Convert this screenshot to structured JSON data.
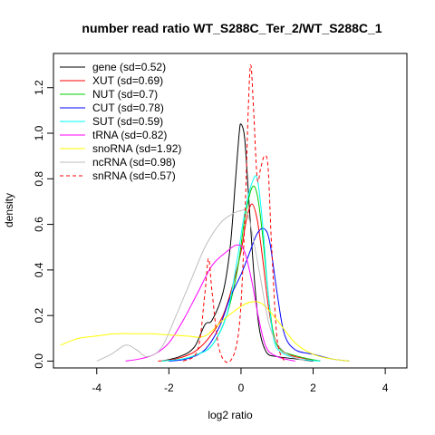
{
  "chart_data": {
    "type": "line",
    "title": "number read ratio WT_S288C_Ter_2/WT_S288C_1",
    "xlabel": "log2 ratio",
    "ylabel": "density",
    "xlim": [
      -5.2,
      4.6
    ],
    "ylim": [
      -0.03,
      1.35
    ],
    "xticks": [
      -4,
      -2,
      0,
      2,
      4
    ],
    "yticks": [
      0.0,
      0.2,
      0.4,
      0.6,
      0.8,
      1.0,
      1.2
    ],
    "grid": false,
    "legend_position": "top-left",
    "series": [
      {
        "name": "gene (sd=0.52)",
        "color": "#000000",
        "dash": false,
        "points": [
          [
            -2.2,
            0
          ],
          [
            -1.7,
            0.02
          ],
          [
            -1.3,
            0.06
          ],
          [
            -1.0,
            0.16
          ],
          [
            -0.8,
            0.18
          ],
          [
            -0.5,
            0.3
          ],
          [
            -0.3,
            0.5
          ],
          [
            -0.15,
            0.8
          ],
          [
            -0.05,
            1.0
          ],
          [
            0.0,
            1.04
          ],
          [
            0.1,
            0.98
          ],
          [
            0.2,
            0.75
          ],
          [
            0.35,
            0.4
          ],
          [
            0.5,
            0.15
          ],
          [
            0.7,
            0.04
          ],
          [
            1.0,
            0.02
          ],
          [
            1.5,
            0.01
          ],
          [
            2.0,
            0
          ]
        ]
      },
      {
        "name": "XUT (sd=0.69)",
        "color": "#ff0000",
        "dash": false,
        "points": [
          [
            -2.3,
            0
          ],
          [
            -1.8,
            0.01
          ],
          [
            -1.3,
            0.04
          ],
          [
            -0.9,
            0.1
          ],
          [
            -0.5,
            0.2
          ],
          [
            -0.2,
            0.35
          ],
          [
            0.0,
            0.48
          ],
          [
            0.15,
            0.62
          ],
          [
            0.3,
            0.69
          ],
          [
            0.45,
            0.62
          ],
          [
            0.6,
            0.45
          ],
          [
            0.75,
            0.25
          ],
          [
            0.9,
            0.12
          ],
          [
            1.1,
            0.05
          ],
          [
            1.5,
            0.02
          ],
          [
            2.2,
            0
          ]
        ]
      },
      {
        "name": "NUT (sd=0.7)",
        "color": "#00cc00",
        "dash": false,
        "points": [
          [
            -2.2,
            0
          ],
          [
            -1.6,
            0.01
          ],
          [
            -1.2,
            0.03
          ],
          [
            -0.8,
            0.07
          ],
          [
            -0.4,
            0.2
          ],
          [
            -0.1,
            0.4
          ],
          [
            0.1,
            0.62
          ],
          [
            0.3,
            0.76
          ],
          [
            0.45,
            0.73
          ],
          [
            0.6,
            0.55
          ],
          [
            0.75,
            0.3
          ],
          [
            0.9,
            0.12
          ],
          [
            1.1,
            0.05
          ],
          [
            1.6,
            0.02
          ],
          [
            2.2,
            0
          ]
        ]
      },
      {
        "name": "CUT (sd=0.78)",
        "color": "#0000ff",
        "dash": false,
        "points": [
          [
            -2.0,
            0
          ],
          [
            -1.5,
            0.01
          ],
          [
            -1.0,
            0.05
          ],
          [
            -0.6,
            0.15
          ],
          [
            -0.3,
            0.28
          ],
          [
            0.0,
            0.38
          ],
          [
            0.2,
            0.46
          ],
          [
            0.45,
            0.56
          ],
          [
            0.65,
            0.58
          ],
          [
            0.8,
            0.52
          ],
          [
            1.0,
            0.3
          ],
          [
            1.2,
            0.12
          ],
          [
            1.5,
            0.05
          ],
          [
            2.0,
            0.03
          ],
          [
            2.5,
            0.01
          ],
          [
            3.0,
            0
          ]
        ]
      },
      {
        "name": "SUT (sd=0.59)",
        "color": "#00ffff",
        "dash": false,
        "points": [
          [
            -2.2,
            0
          ],
          [
            -1.6,
            0.01
          ],
          [
            -1.2,
            0.03
          ],
          [
            -0.8,
            0.07
          ],
          [
            -0.4,
            0.2
          ],
          [
            -0.1,
            0.45
          ],
          [
            0.1,
            0.65
          ],
          [
            0.3,
            0.78
          ],
          [
            0.45,
            0.8
          ],
          [
            0.6,
            0.6
          ],
          [
            0.75,
            0.3
          ],
          [
            0.9,
            0.1
          ],
          [
            1.1,
            0.04
          ],
          [
            1.6,
            0.01
          ],
          [
            2.2,
            0
          ]
        ]
      },
      {
        "name": "tRNA (sd=0.82)",
        "color": "#ff00ff",
        "dash": false,
        "points": [
          [
            -3.2,
            0
          ],
          [
            -2.8,
            0.01
          ],
          [
            -2.4,
            0.03
          ],
          [
            -2.0,
            0.08
          ],
          [
            -1.6,
            0.18
          ],
          [
            -1.2,
            0.3
          ],
          [
            -0.8,
            0.42
          ],
          [
            -0.4,
            0.48
          ],
          [
            -0.1,
            0.51
          ],
          [
            0.1,
            0.48
          ],
          [
            0.3,
            0.35
          ],
          [
            0.5,
            0.18
          ],
          [
            0.7,
            0.06
          ],
          [
            1.0,
            0.02
          ],
          [
            1.5,
            0
          ]
        ]
      },
      {
        "name": "snoRNA (sd=1.92)",
        "color": "#ffff00",
        "dash": false,
        "points": [
          [
            -5.0,
            0.07
          ],
          [
            -4.5,
            0.1
          ],
          [
            -4.0,
            0.11
          ],
          [
            -3.5,
            0.12
          ],
          [
            -3.0,
            0.12
          ],
          [
            -2.5,
            0.12
          ],
          [
            -2.0,
            0.115
          ],
          [
            -1.5,
            0.11
          ],
          [
            -1.0,
            0.11
          ],
          [
            -0.5,
            0.18
          ],
          [
            0.0,
            0.24
          ],
          [
            0.3,
            0.26
          ],
          [
            0.6,
            0.25
          ],
          [
            1.0,
            0.18
          ],
          [
            1.5,
            0.08
          ],
          [
            2.0,
            0.03
          ],
          [
            2.5,
            0.01
          ],
          [
            3.0,
            0
          ]
        ]
      },
      {
        "name": "ncRNA (sd=0.98)",
        "color": "#bebebe",
        "dash": false,
        "points": [
          [
            -4.0,
            0
          ],
          [
            -3.6,
            0.03
          ],
          [
            -3.2,
            0.07
          ],
          [
            -2.9,
            0.05
          ],
          [
            -2.6,
            0.02
          ],
          [
            -2.2,
            0.06
          ],
          [
            -1.8,
            0.2
          ],
          [
            -1.4,
            0.35
          ],
          [
            -1.0,
            0.5
          ],
          [
            -0.6,
            0.6
          ],
          [
            -0.3,
            0.64
          ],
          [
            0.0,
            0.66
          ],
          [
            0.2,
            0.64
          ],
          [
            0.5,
            0.4
          ],
          [
            0.8,
            0.15
          ],
          [
            1.2,
            0.04
          ],
          [
            1.8,
            0
          ]
        ]
      },
      {
        "name": "snRNA (sd=0.57)",
        "color": "#ff0000",
        "dash": true,
        "points": [
          [
            -1.6,
            0
          ],
          [
            -1.2,
            0.05
          ],
          [
            -1.0,
            0.3
          ],
          [
            -0.9,
            0.45
          ],
          [
            -0.8,
            0.3
          ],
          [
            -0.6,
            0.05
          ],
          [
            -0.3,
            0.0
          ],
          [
            -0.05,
            0.15
          ],
          [
            0.1,
            0.6
          ],
          [
            0.2,
            1.1
          ],
          [
            0.27,
            1.3
          ],
          [
            0.35,
            1.1
          ],
          [
            0.45,
            0.8
          ],
          [
            0.55,
            0.85
          ],
          [
            0.65,
            0.9
          ],
          [
            0.75,
            0.85
          ],
          [
            0.85,
            0.5
          ],
          [
            1.0,
            0.1
          ],
          [
            1.2,
            0
          ]
        ]
      }
    ]
  }
}
